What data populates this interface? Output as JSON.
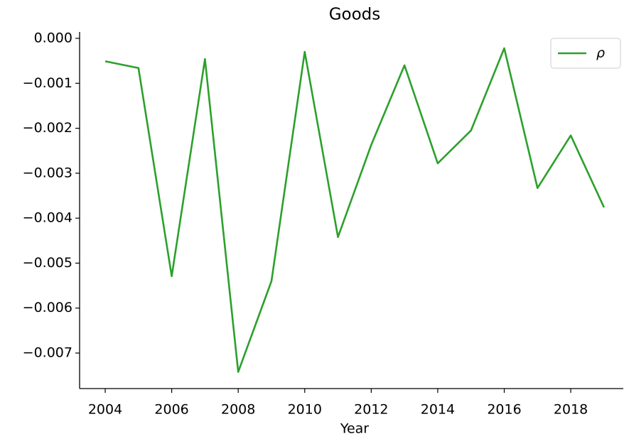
{
  "chart_data": {
    "type": "line",
    "title": "Goods",
    "xlabel": "Year",
    "x": [
      2004,
      2005,
      2006,
      2007,
      2008,
      2009,
      2010,
      2011,
      2012,
      2013,
      2014,
      2015,
      2016,
      2017,
      2018,
      2019
    ],
    "series": [
      {
        "name": "ρ",
        "color": "#2ca02c",
        "values": [
          -0.00051,
          -0.00066,
          -0.00529,
          -0.00046,
          -0.00742,
          -0.0054,
          -0.0003,
          -0.00442,
          -0.00237,
          -0.0006,
          -0.00278,
          -0.00205,
          -0.00022,
          -0.00333,
          -0.00216,
          -0.00376
        ]
      }
    ],
    "xlim": [
      2003.23,
      2019.58
    ],
    "ylim": [
      -0.00779,
      0.000142
    ],
    "xticks": [
      2004,
      2006,
      2008,
      2010,
      2012,
      2014,
      2016,
      2018
    ],
    "yticks": [
      {
        "value": 0,
        "label": "0.000"
      },
      {
        "value": -0.001,
        "label": "−0.001"
      },
      {
        "value": -0.002,
        "label": "−0.002"
      },
      {
        "value": -0.003,
        "label": "−0.003"
      },
      {
        "value": -0.004,
        "label": "−0.004"
      },
      {
        "value": -0.005,
        "label": "−0.005"
      },
      {
        "value": -0.006,
        "label": "−0.006"
      },
      {
        "value": -0.007,
        "label": "−0.007"
      }
    ],
    "grid": false,
    "legend": "upper right"
  }
}
